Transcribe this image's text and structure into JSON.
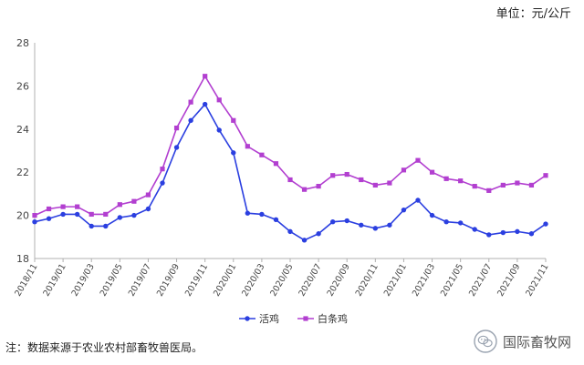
{
  "unit_label": "单位：元/公斤",
  "note": "注：数据来源于农业农村部畜牧兽医局。",
  "watermark": {
    "text": "国际畜牧网",
    "icon": "wechat-icon"
  },
  "chart_data": {
    "type": "line",
    "title": "",
    "xlabel": "",
    "ylabel": "",
    "ylim": [
      18,
      28
    ],
    "yticks": [
      18,
      20,
      22,
      24,
      26,
      28
    ],
    "grid": false,
    "legend_position": "bottom-center",
    "x": [
      "2018/11",
      "2018/12",
      "2019/01",
      "2019/02",
      "2019/03",
      "2019/04",
      "2019/05",
      "2019/06",
      "2019/07",
      "2019/08",
      "2019/09",
      "2019/10",
      "2019/11",
      "2019/12",
      "2020/01",
      "2020/02",
      "2020/03",
      "2020/04",
      "2020/05",
      "2020/06",
      "2020/07",
      "2020/08",
      "2020/09",
      "2020/10",
      "2020/11",
      "2020/12",
      "2021/01",
      "2021/02",
      "2021/03",
      "2021/04",
      "2021/05",
      "2021/06",
      "2021/07",
      "2021/08",
      "2021/09",
      "2021/10",
      "2021/11"
    ],
    "xtick_labels": [
      "2018/11",
      "2019/01",
      "2019/03",
      "2019/05",
      "2019/07",
      "2019/09",
      "2019/11",
      "2020/01",
      "2020/03",
      "2020/05",
      "2020/07",
      "2020/09",
      "2020/11",
      "2021/01",
      "2021/03",
      "2021/05",
      "2021/07",
      "2021/09",
      "2021/11"
    ],
    "series": [
      {
        "name": "活鸡",
        "color": "#2b3fe0",
        "marker": "circle",
        "values": [
          19.7,
          19.85,
          20.05,
          20.05,
          19.5,
          19.5,
          19.9,
          20.0,
          20.3,
          21.5,
          23.15,
          24.4,
          25.15,
          23.95,
          22.9,
          20.1,
          20.05,
          19.8,
          19.25,
          18.85,
          19.15,
          19.7,
          19.75,
          19.55,
          19.4,
          19.55,
          20.25,
          20.7,
          20.0,
          19.7,
          19.65,
          19.35,
          19.1,
          19.2,
          19.25,
          19.15,
          19.6
        ]
      },
      {
        "name": "白条鸡",
        "color": "#b23fd0",
        "marker": "square",
        "values": [
          20.0,
          20.3,
          20.4,
          20.4,
          20.05,
          20.05,
          20.5,
          20.65,
          20.95,
          22.15,
          24.05,
          25.25,
          26.45,
          25.35,
          24.4,
          23.2,
          22.8,
          22.4,
          21.65,
          21.2,
          21.35,
          21.85,
          21.9,
          21.65,
          21.4,
          21.5,
          22.1,
          22.55,
          22.0,
          21.7,
          21.6,
          21.35,
          21.15,
          21.4,
          21.5,
          21.4,
          21.85
        ]
      }
    ]
  }
}
